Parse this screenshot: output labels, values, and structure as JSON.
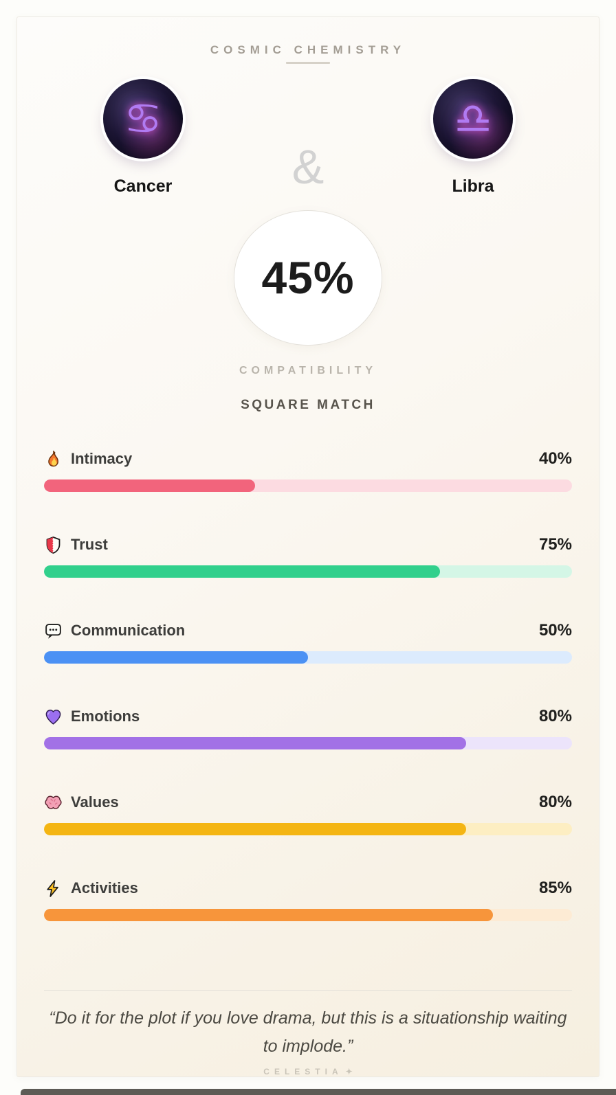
{
  "header": {
    "title": "COSMIC CHEMISTRY"
  },
  "pair": {
    "left": {
      "name": "Cancer",
      "symbol": "♋",
      "icon": "cancer-sign-icon"
    },
    "ampersand": "&",
    "right": {
      "name": "Libra",
      "symbol": "♎",
      "icon": "libra-sign-icon"
    }
  },
  "score": {
    "value": "45%",
    "label": "COMPATIBILITY",
    "match_type": "SQUARE MATCH"
  },
  "stats": [
    {
      "label": "Intimacy",
      "value": "40%",
      "pct": 40,
      "icon": "fire-icon",
      "fill_color": "#f2647c",
      "track_color": "#fcdbe1"
    },
    {
      "label": "Trust",
      "value": "75%",
      "pct": 75,
      "icon": "shield-icon",
      "fill_color": "#31d08c",
      "track_color": "#d4f6e6"
    },
    {
      "label": "Communication",
      "value": "50%",
      "pct": 50,
      "icon": "speech-icon",
      "fill_color": "#4b91f4",
      "track_color": "#dcebfd"
    },
    {
      "label": "Emotions",
      "value": "80%",
      "pct": 80,
      "icon": "heart-icon",
      "fill_color": "#a271e6",
      "track_color": "#ece4fb"
    },
    {
      "label": "Values",
      "value": "80%",
      "pct": 80,
      "icon": "brain-icon",
      "fill_color": "#f4b513",
      "track_color": "#fdeec2"
    },
    {
      "label": "Activities",
      "value": "85%",
      "pct": 85,
      "icon": "bolt-icon",
      "fill_color": "#f7953b",
      "track_color": "#fdebd4"
    }
  ],
  "quote": "“Do it for the plot if you love drama, but this is a situationship waiting to implode.”",
  "footer": {
    "brand": "CELESTIA",
    "star": "✦"
  }
}
